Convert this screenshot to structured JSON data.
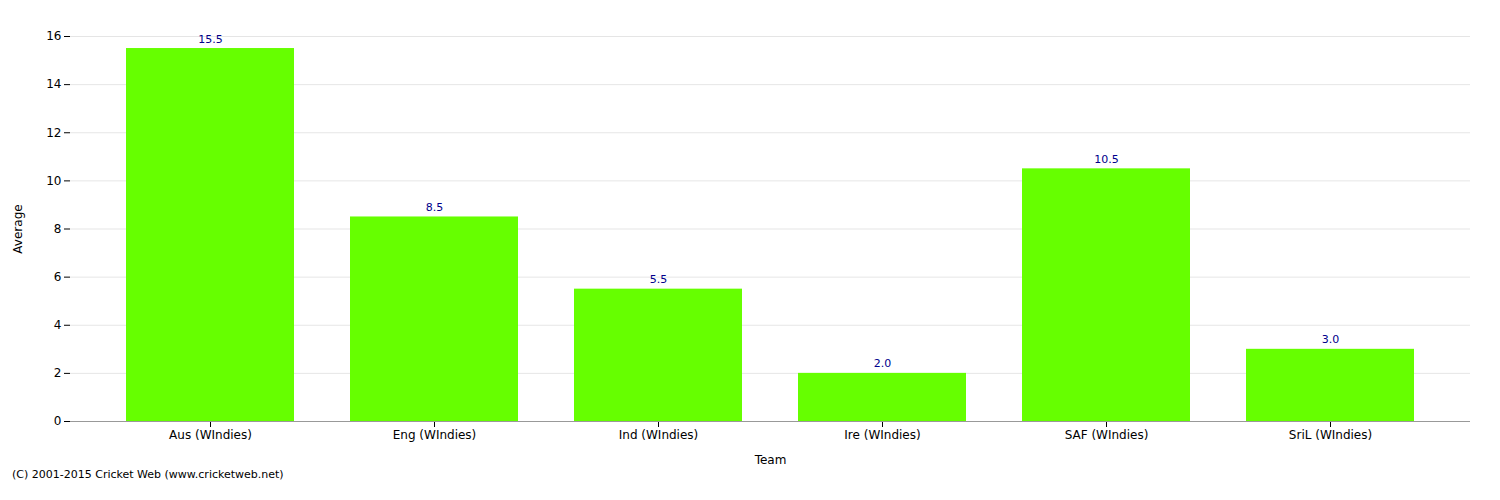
{
  "chart_data": {
    "type": "bar",
    "categories": [
      "Aus (WIndies)",
      "Eng (WIndies)",
      "Ind (WIndies)",
      "Ire (WIndies)",
      "SAF (WIndies)",
      "SriL (WIndies)"
    ],
    "values": [
      15.5,
      8.5,
      5.5,
      2.0,
      10.5,
      3.0
    ],
    "value_labels": [
      "15.5",
      "8.5",
      "5.5",
      "2.0",
      "10.5",
      "3.0"
    ],
    "data_labels": true,
    "color": "#66ff00",
    "xlabel": "Team",
    "ylabel": "Average",
    "ylim": [
      0,
      16
    ],
    "yticks": [
      0,
      2,
      4,
      6,
      8,
      10,
      12,
      14,
      16
    ],
    "grid": true,
    "annotations": [
      "(C) 2001-2015 Cricket Web (www.cricketweb.net)"
    ]
  }
}
